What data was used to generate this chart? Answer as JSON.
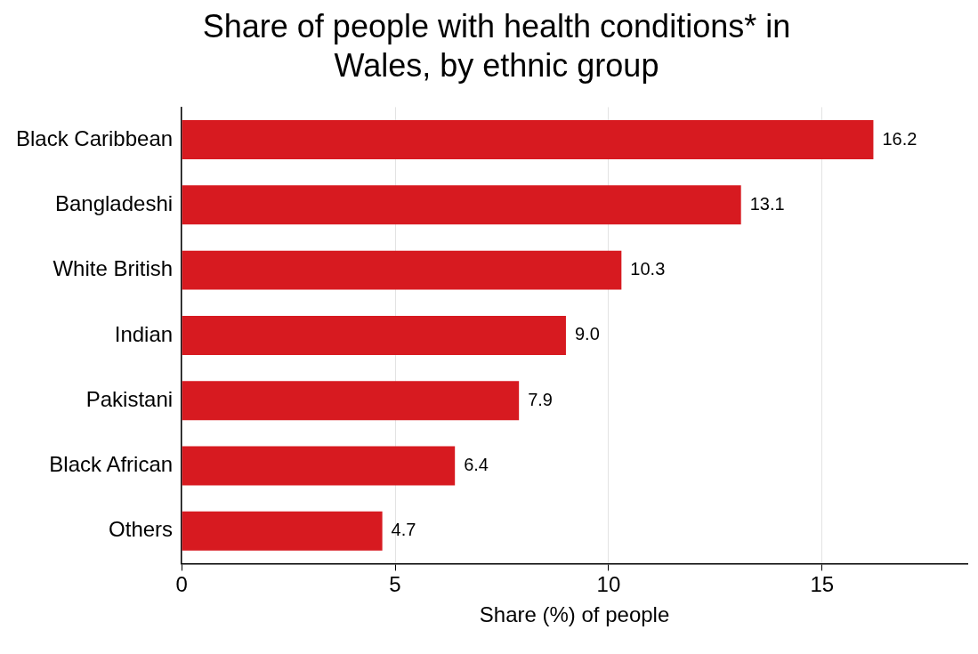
{
  "chart_data": {
    "type": "bar",
    "orientation": "horizontal",
    "title": "Share of people with health conditions* in Wales, by ethnic group",
    "xlabel": "Share (%) of people",
    "categories": [
      "Black Caribbean",
      "Bangladeshi",
      "White British",
      "Indian",
      "Pakistani",
      "Black African",
      "Others"
    ],
    "values": [
      16.2,
      13.1,
      10.3,
      9.0,
      7.9,
      6.4,
      4.7
    ],
    "value_labels": [
      "16.2",
      "13.1",
      "10.3",
      "9.0",
      "7.9",
      "6.4",
      "4.7"
    ],
    "color": "#d71a20",
    "xlim": [
      0,
      18.4
    ],
    "xticks": [
      0,
      5,
      10,
      15
    ],
    "grid": "x",
    "legend": false
  }
}
